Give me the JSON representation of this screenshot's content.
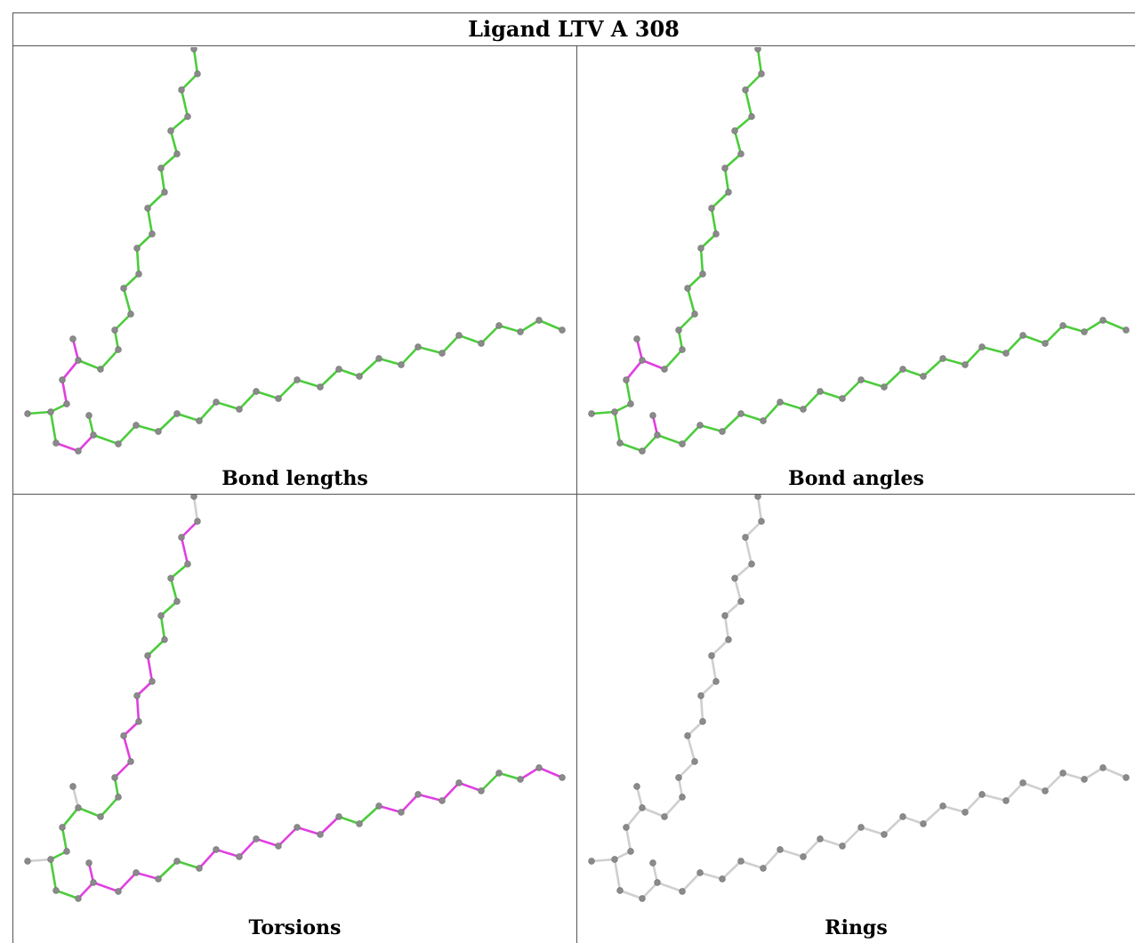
{
  "title": "Ligand LTV A 308",
  "colors": {
    "ok": "#4ccc3c",
    "outlier": "#e040e0",
    "neutral": "#cfcfcf",
    "atom": "#8a8a8a"
  },
  "panels": [
    {
      "caption": "Bond lengths",
      "mode": "lengths"
    },
    {
      "caption": "Bond angles",
      "mode": "angles"
    },
    {
      "caption": "Torsions",
      "mode": "torsions"
    },
    {
      "caption": "Rings",
      "mode": "rings"
    }
  ]
}
